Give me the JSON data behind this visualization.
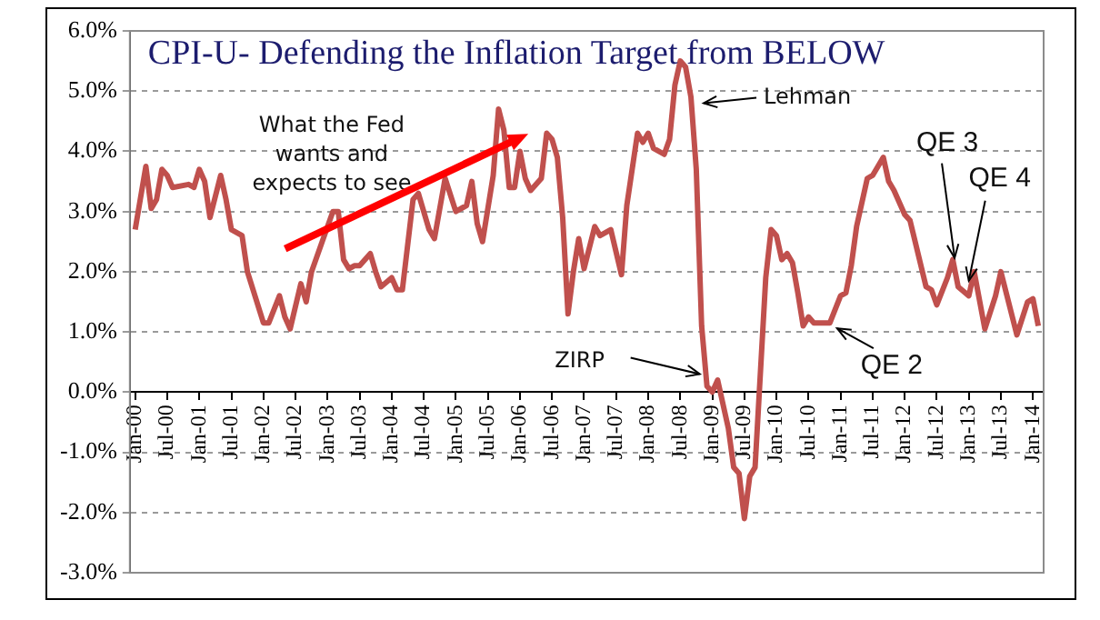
{
  "chart_data": {
    "type": "line",
    "title": "CPI-U- Defending the Inflation Target from BELOW",
    "x": [
      "2000-01",
      "2000-03",
      "2000-04",
      "2000-05",
      "2000-06",
      "2000-07",
      "2000-08",
      "2000-11",
      "2000-12",
      "2001-01",
      "2001-02",
      "2001-03",
      "2001-05",
      "2001-06",
      "2001-07",
      "2001-09",
      "2001-10",
      "2002-01",
      "2002-02",
      "2002-04",
      "2002-05",
      "2002-06",
      "2002-08",
      "2002-09",
      "2002-10",
      "2002-12",
      "2003-02",
      "2003-03",
      "2003-04",
      "2003-05",
      "2003-06",
      "2003-07",
      "2003-09",
      "2003-10",
      "2003-11",
      "2004-01",
      "2004-02",
      "2004-03",
      "2004-05",
      "2004-06",
      "2004-08",
      "2004-09",
      "2004-11",
      "2005-01",
      "2005-03",
      "2005-04",
      "2005-05",
      "2005-06",
      "2005-08",
      "2005-09",
      "2005-10",
      "2005-11",
      "2005-12",
      "2006-01",
      "2006-02",
      "2006-03",
      "2006-05",
      "2006-06",
      "2006-07",
      "2006-08",
      "2006-09",
      "2006-10",
      "2006-11",
      "2006-12",
      "2007-01",
      "2007-03",
      "2007-04",
      "2007-06",
      "2007-08",
      "2007-09",
      "2007-11",
      "2007-12",
      "2008-01",
      "2008-02",
      "2008-04",
      "2008-05",
      "2008-06",
      "2008-07",
      "2008-08",
      "2008-09",
      "2008-10",
      "2008-11",
      "2008-12",
      "2009-01",
      "2009-02",
      "2009-04",
      "2009-05",
      "2009-06",
      "2009-07",
      "2009-08",
      "2009-09",
      "2009-11",
      "2009-12",
      "2010-01",
      "2010-02",
      "2010-03",
      "2010-04",
      "2010-05",
      "2010-06",
      "2010-07",
      "2010-08",
      "2010-10",
      "2010-11",
      "2011-01",
      "2011-02",
      "2011-03",
      "2011-04",
      "2011-06",
      "2011-07",
      "2011-08",
      "2011-09",
      "2011-10",
      "2011-11",
      "2012-01",
      "2012-02",
      "2012-05",
      "2012-06",
      "2012-07",
      "2012-09",
      "2012-10",
      "2012-11",
      "2013-01",
      "2013-02",
      "2013-04",
      "2013-06",
      "2013-07",
      "2013-10",
      "2013-12",
      "2014-01",
      "2014-02"
    ],
    "values": [
      2.7,
      3.75,
      3.05,
      3.2,
      3.7,
      3.6,
      3.4,
      3.45,
      3.4,
      3.7,
      3.5,
      2.9,
      3.6,
      3.2,
      2.7,
      2.6,
      2.0,
      1.15,
      1.15,
      1.6,
      1.25,
      1.05,
      1.8,
      1.5,
      2.0,
      2.5,
      3.0,
      3.0,
      2.2,
      2.05,
      2.1,
      2.1,
      2.3,
      2.0,
      1.75,
      1.9,
      1.7,
      1.7,
      3.2,
      3.3,
      2.7,
      2.55,
      3.55,
      3.0,
      3.1,
      3.5,
      2.8,
      2.5,
      3.6,
      4.7,
      4.35,
      3.4,
      3.4,
      4.0,
      3.55,
      3.35,
      3.55,
      4.3,
      4.2,
      3.9,
      2.9,
      1.3,
      2.0,
      2.55,
      2.05,
      2.75,
      2.6,
      2.7,
      1.95,
      3.1,
      4.3,
      4.15,
      4.3,
      4.05,
      3.95,
      4.2,
      5.1,
      5.5,
      5.4,
      4.9,
      3.7,
      1.1,
      0.1,
      0.0,
      0.2,
      -0.6,
      -1.25,
      -1.35,
      -2.1,
      -1.4,
      -1.25,
      1.9,
      2.7,
      2.6,
      2.2,
      2.3,
      2.15,
      1.65,
      1.1,
      1.25,
      1.15,
      1.15,
      1.15,
      1.6,
      1.65,
      2.1,
      2.75,
      3.55,
      3.6,
      3.75,
      3.9,
      3.5,
      3.35,
      2.95,
      2.85,
      1.75,
      1.7,
      1.45,
      1.9,
      2.2,
      1.75,
      1.6,
      2.0,
      1.05,
      1.6,
      2.0,
      0.95,
      1.5,
      1.55,
      1.1
    ],
    "color": "#c0504d",
    "xlim": [
      "1999-12",
      "2014-03"
    ],
    "xticks": [
      {
        "value": "2000-01",
        "label": "Jan-00"
      },
      {
        "value": "2000-07",
        "label": "Jul-00"
      },
      {
        "value": "2001-01",
        "label": "Jan-01"
      },
      {
        "value": "2001-07",
        "label": "Jul-01"
      },
      {
        "value": "2002-01",
        "label": "Jan-02"
      },
      {
        "value": "2002-07",
        "label": "Jul-02"
      },
      {
        "value": "2003-01",
        "label": "Jan-03"
      },
      {
        "value": "2003-07",
        "label": "Jul-03"
      },
      {
        "value": "2004-01",
        "label": "Jan-04"
      },
      {
        "value": "2004-07",
        "label": "Jul-04"
      },
      {
        "value": "2005-01",
        "label": "Jan-05"
      },
      {
        "value": "2005-07",
        "label": "Jul-05"
      },
      {
        "value": "2006-01",
        "label": "Jan-06"
      },
      {
        "value": "2006-07",
        "label": "Jul-06"
      },
      {
        "value": "2007-01",
        "label": "Jan-07"
      },
      {
        "value": "2007-07",
        "label": "Jul-07"
      },
      {
        "value": "2008-01",
        "label": "Jan-08"
      },
      {
        "value": "2008-07",
        "label": "Jul-08"
      },
      {
        "value": "2009-01",
        "label": "Jan-09"
      },
      {
        "value": "2009-07",
        "label": "Jul-09"
      },
      {
        "value": "2010-01",
        "label": "Jan-10"
      },
      {
        "value": "2010-07",
        "label": "Jul-10"
      },
      {
        "value": "2011-01",
        "label": "Jan-11"
      },
      {
        "value": "2011-07",
        "label": "Jul-11"
      },
      {
        "value": "2012-01",
        "label": "Jan-12"
      },
      {
        "value": "2012-07",
        "label": "Jul-12"
      },
      {
        "value": "2013-01",
        "label": "Jan-13"
      },
      {
        "value": "2013-07",
        "label": "Jul-13"
      },
      {
        "value": "2014-01",
        "label": "Jan-14"
      }
    ],
    "ylim": [
      -3,
      6
    ],
    "yticks": [
      {
        "value": -3,
        "label": "-3.0%"
      },
      {
        "value": -2,
        "label": "-2.0%"
      },
      {
        "value": -1,
        "label": "-1.0%"
      },
      {
        "value": 0,
        "label": "0.0%"
      },
      {
        "value": 1,
        "label": "1.0%"
      },
      {
        "value": 2,
        "label": "2.0%"
      },
      {
        "value": 3,
        "label": "3.0%"
      },
      {
        "value": 4,
        "label": "4.0%"
      },
      {
        "value": 5,
        "label": "5.0%"
      },
      {
        "value": 6,
        "label": "6.0%"
      }
    ],
    "grid": "y",
    "legend": false,
    "annotations": [
      "What the Fed wants and expects to see",
      {
        "text": "Lehman",
        "x": "2008-09",
        "y": 4.8
      },
      {
        "text": "ZIRP",
        "x": "2008-12",
        "y": 0.3
      },
      {
        "text": "QE 2",
        "x": "2010-11",
        "y": 1.15
      },
      {
        "text": "QE 3",
        "x": "2012-10",
        "y": 2.2
      },
      {
        "text": "QE 4",
        "x": "2013-01",
        "y": 1.85
      }
    ]
  }
}
